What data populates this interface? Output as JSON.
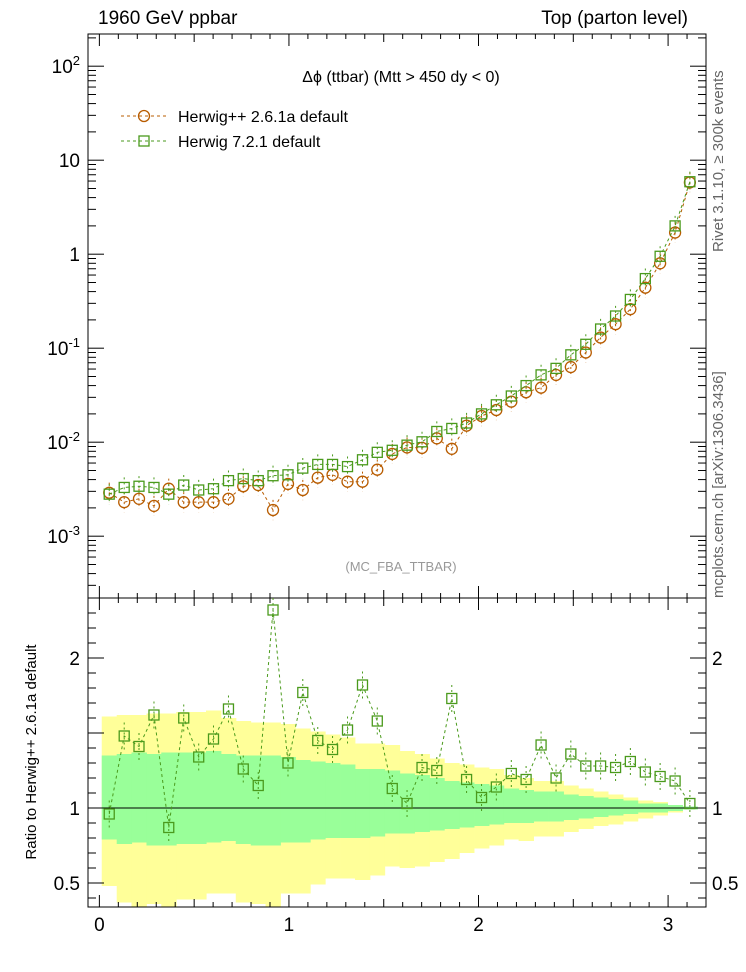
{
  "header": {
    "left": "1960 GeV ppbar",
    "right": "Top (parton level)"
  },
  "side_labels": {
    "rivet": "Rivet 3.1.10, ≥ 300k events",
    "source": "mcplots.cern.ch [arXiv:1306.3436]"
  },
  "chart_data": [
    {
      "type": "line",
      "panel": "main",
      "title": "Δϕ (ttbar) (Mtt > 450 dy < 0)",
      "watermark": "(MC_FBA_TTBAR)",
      "yscale": "log",
      "xlim": [
        -0.06,
        3.2
      ],
      "ylim": [
        0.00022,
        220
      ],
      "ytick_labels": [
        {
          "v": 100,
          "label": "10^2"
        },
        {
          "v": 10,
          "label": "10"
        },
        {
          "v": 1,
          "label": "1"
        },
        {
          "v": 0.1,
          "label": "10^-1"
        },
        {
          "v": 0.01,
          "label": "10^-2"
        },
        {
          "v": 0.001,
          "label": "10^-3"
        }
      ],
      "legend_position": "top-left",
      "x": [
        0.052,
        0.131,
        0.209,
        0.288,
        0.366,
        0.445,
        0.524,
        0.602,
        0.681,
        0.759,
        0.838,
        0.916,
        0.995,
        1.073,
        1.152,
        1.23,
        1.309,
        1.388,
        1.466,
        1.545,
        1.623,
        1.702,
        1.78,
        1.859,
        1.937,
        2.016,
        2.094,
        2.173,
        2.251,
        2.33,
        2.409,
        2.487,
        2.566,
        2.644,
        2.723,
        2.801,
        2.88,
        2.958,
        3.037,
        3.115
      ],
      "series": [
        {
          "name": "Herwig++ 2.6.1a default",
          "color": "#b85c00",
          "marker": "circle",
          "values": [
            0.0029,
            0.0023,
            0.0025,
            0.0021,
            0.0032,
            0.0023,
            0.0023,
            0.0023,
            0.0025,
            0.0034,
            0.0035,
            0.0019,
            0.0036,
            0.0031,
            0.0042,
            0.0045,
            0.0038,
            0.0038,
            0.0051,
            0.0075,
            0.0088,
            0.0087,
            0.011,
            0.0085,
            0.015,
            0.019,
            0.022,
            0.027,
            0.034,
            0.038,
            0.052,
            0.063,
            0.09,
            0.13,
            0.18,
            0.26,
            0.44,
            0.8,
            1.7,
            5.8
          ]
        },
        {
          "name": "Herwig 7.2.1 default",
          "color": "#4a9a1c",
          "marker": "square",
          "values": [
            0.0028,
            0.0033,
            0.0034,
            0.0033,
            0.0028,
            0.0035,
            0.0031,
            0.0032,
            0.0039,
            0.0041,
            0.0039,
            0.0044,
            0.0045,
            0.0053,
            0.0058,
            0.0058,
            0.0055,
            0.0065,
            0.0078,
            0.0082,
            0.0093,
            0.0101,
            0.013,
            0.014,
            0.016,
            0.02,
            0.025,
            0.031,
            0.04,
            0.052,
            0.061,
            0.085,
            0.11,
            0.16,
            0.22,
            0.33,
            0.55,
            0.95,
            2.0,
            5.9
          ]
        }
      ]
    },
    {
      "type": "line",
      "panel": "ratio",
      "ylabel": "Ratio to Herwig++ 2.6.1a default",
      "xlim": [
        -0.06,
        3.2
      ],
      "ylim": [
        0.34,
        2.4
      ],
      "xticks": [
        0,
        1,
        2,
        3
      ],
      "yticks": [
        0.5,
        1,
        2
      ],
      "reference_line": 1,
      "bands": {
        "outer_color": "#ffff99",
        "inner_color": "#99ff99",
        "outer_up": [
          1.61,
          1.62,
          1.62,
          1.63,
          1.63,
          1.64,
          1.64,
          1.65,
          1.6,
          1.58,
          1.57,
          1.57,
          1.56,
          1.53,
          1.51,
          1.49,
          1.47,
          1.43,
          1.43,
          1.42,
          1.38,
          1.36,
          1.33,
          1.3,
          1.29,
          1.27,
          1.26,
          1.22,
          1.2,
          1.18,
          1.18,
          1.15,
          1.13,
          1.11,
          1.09,
          1.07,
          1.05,
          1.04,
          1.02,
          1.01
        ],
        "outer_dn": [
          0.48,
          0.37,
          0.34,
          0.36,
          0.34,
          0.39,
          0.39,
          0.43,
          0.43,
          0.37,
          0.36,
          0.28,
          0.43,
          0.43,
          0.49,
          0.53,
          0.53,
          0.52,
          0.55,
          0.61,
          0.6,
          0.61,
          0.64,
          0.66,
          0.7,
          0.73,
          0.75,
          0.79,
          0.78,
          0.81,
          0.81,
          0.84,
          0.86,
          0.88,
          0.89,
          0.91,
          0.93,
          0.95,
          0.97,
          0.99
        ],
        "inner_up": [
          1.35,
          1.36,
          1.37,
          1.36,
          1.37,
          1.37,
          1.37,
          1.38,
          1.36,
          1.35,
          1.35,
          1.35,
          1.34,
          1.32,
          1.31,
          1.3,
          1.29,
          1.26,
          1.26,
          1.25,
          1.23,
          1.22,
          1.2,
          1.18,
          1.17,
          1.16,
          1.15,
          1.13,
          1.12,
          1.11,
          1.11,
          1.09,
          1.08,
          1.07,
          1.06,
          1.05,
          1.03,
          1.03,
          1.02,
          1.01
        ],
        "inner_dn": [
          0.79,
          0.76,
          0.77,
          0.75,
          0.75,
          0.76,
          0.76,
          0.77,
          0.78,
          0.76,
          0.75,
          0.75,
          0.77,
          0.77,
          0.79,
          0.8,
          0.8,
          0.8,
          0.81,
          0.83,
          0.83,
          0.84,
          0.85,
          0.86,
          0.87,
          0.88,
          0.89,
          0.9,
          0.9,
          0.91,
          0.91,
          0.92,
          0.93,
          0.94,
          0.95,
          0.96,
          0.97,
          0.97,
          0.98,
          0.99
        ]
      },
      "series": [
        {
          "name": "Herwig 7.2.1 default",
          "color": "#4a9a1c",
          "marker": "square",
          "values": [
            0.96,
            1.48,
            1.41,
            1.62,
            0.87,
            1.6,
            1.34,
            1.46,
            1.66,
            1.26,
            1.15,
            2.32,
            1.3,
            1.77,
            1.45,
            1.39,
            1.52,
            1.82,
            1.58,
            1.13,
            1.03,
            1.27,
            1.25,
            1.73,
            1.19,
            1.07,
            1.14,
            1.23,
            1.19,
            1.42,
            1.2,
            1.36,
            1.28,
            1.28,
            1.27,
            1.31,
            1.24,
            1.21,
            1.18,
            1.03
          ]
        }
      ]
    }
  ]
}
